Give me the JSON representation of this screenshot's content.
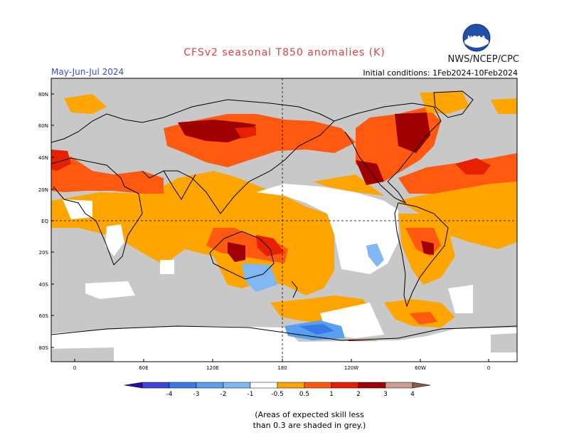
{
  "title": "CFSv2 seasonal T850 anomalies (K)",
  "season": "May-Jun-Jul 2024",
  "initial_conditions": "Initial conditions: 1Feb2024-10Feb2024",
  "organization": "NWS/NCEP/CPC",
  "logo": {
    "text": "NOAA",
    "icon": "noaa-logo-icon"
  },
  "note": [
    "(Areas of expected skill less",
    "than 0.3 are shaded in grey.)"
  ],
  "map": {
    "lat_labels": [
      "80N",
      "60N",
      "40N",
      "20N",
      "EQ",
      "20S",
      "40S",
      "60S",
      "80S"
    ],
    "lon_labels": [
      "0",
      "60E",
      "120E",
      "180",
      "120W",
      "60W",
      "0"
    ]
  },
  "legend": {
    "labels": [
      "-4",
      "-3",
      "-2",
      "-1",
      "-0.5",
      "0.5",
      "1",
      "2",
      "3",
      "4"
    ],
    "colors": [
      "#2a0fa0",
      "#3b46d6",
      "#3a7ae8",
      "#5aa0ee",
      "#80b8f4",
      "#ffffff",
      "#ffa500",
      "#ff5a10",
      "#e62000",
      "#a00000",
      "#c9a090",
      "#8a5a4a"
    ]
  },
  "colors": {
    "grey_low_skill": "#c8c8c8",
    "positive_weak": "#ffa500",
    "positive_mid": "#ff5a10",
    "positive_strong": "#e62000",
    "positive_very_strong": "#a00000",
    "negative_weak": "#80b8f4",
    "negative_mid": "#5aa0ee"
  }
}
